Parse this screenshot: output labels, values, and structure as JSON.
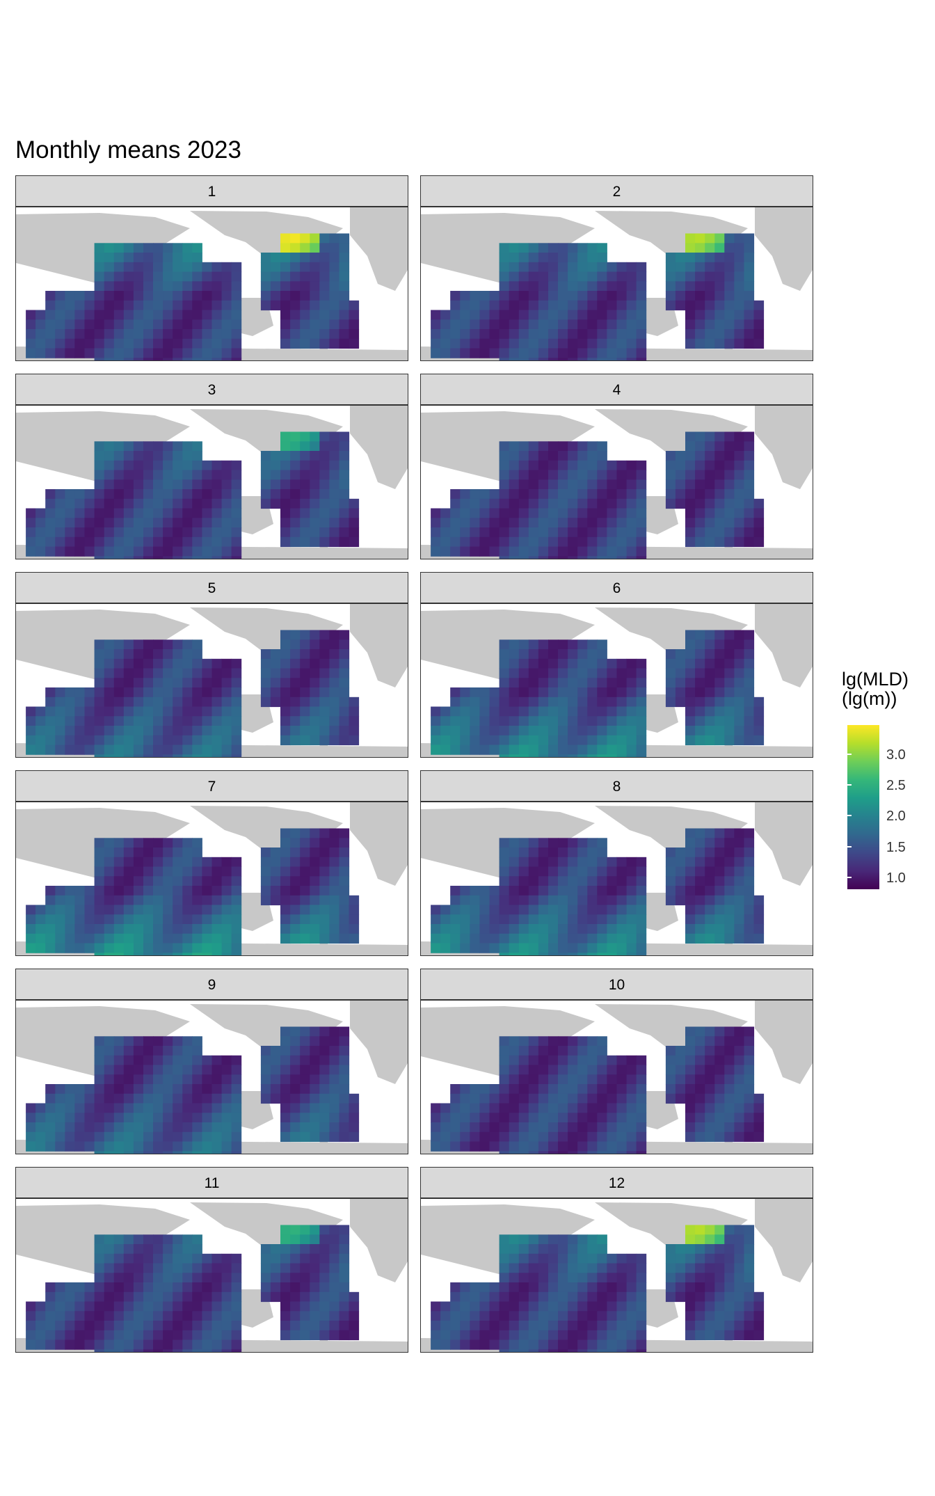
{
  "title": "Monthly means 2023",
  "panels": [
    {
      "label": "1"
    },
    {
      "label": "2"
    },
    {
      "label": "3"
    },
    {
      "label": "4"
    },
    {
      "label": "5"
    },
    {
      "label": "6"
    },
    {
      "label": "7"
    },
    {
      "label": "8"
    },
    {
      "label": "9"
    },
    {
      "label": "10"
    },
    {
      "label": "11"
    },
    {
      "label": "12"
    }
  ],
  "legend": {
    "title_line1": "lg(MLD)",
    "title_line2": "(lg(m))",
    "ticks": [
      "3.0",
      "2.5",
      "2.0",
      "1.5",
      "1.0"
    ],
    "colors": [
      "#fde725",
      "#b5de2b",
      "#6ece58",
      "#35b779",
      "#1f9e89",
      "#26828e",
      "#31688e",
      "#3e4989",
      "#482878",
      "#440154"
    ]
  },
  "colors": {
    "land": "#c8c8c8",
    "strip_background": "#d9d9d9"
  }
}
